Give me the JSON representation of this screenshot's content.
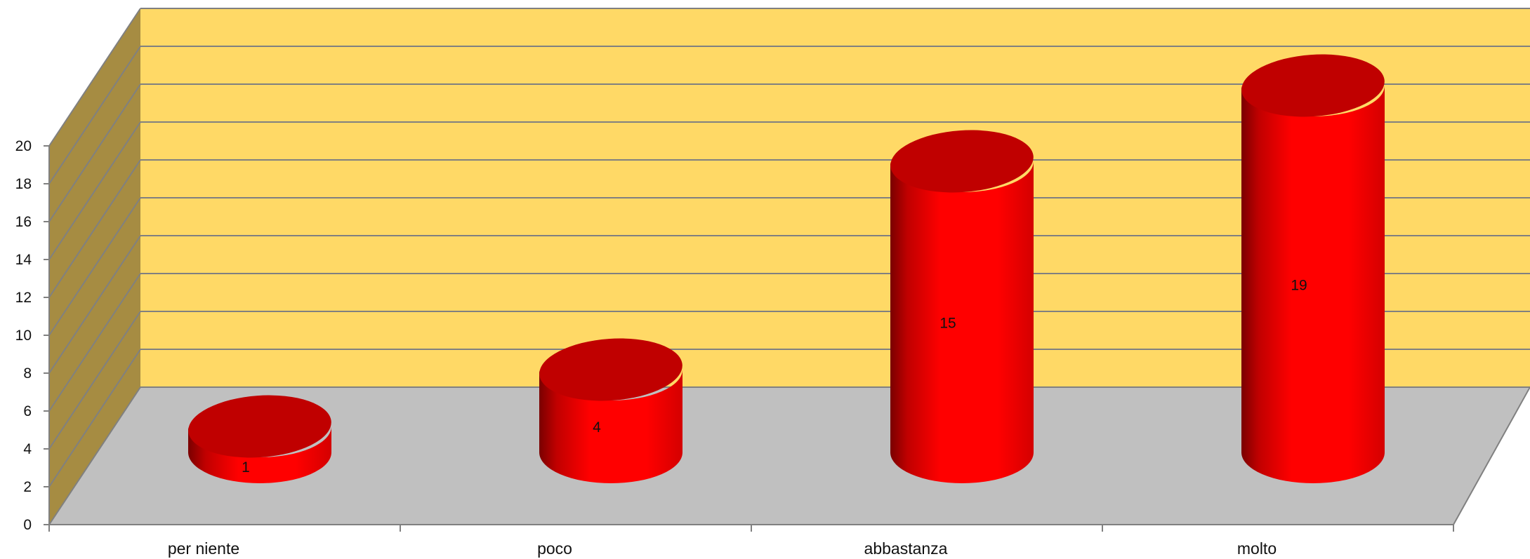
{
  "chart_data": {
    "type": "bar",
    "style": "3d-cylinder",
    "categories": [
      "per niente",
      "poco",
      "abbastanza",
      "molto"
    ],
    "values": [
      1,
      4,
      15,
      19
    ],
    "y_ticks": [
      "0",
      "2",
      "4",
      "6",
      "8",
      "10",
      "12",
      "14",
      "16",
      "18",
      "20"
    ],
    "data_labels": [
      "1",
      "4",
      "15",
      "19"
    ],
    "ylim": [
      0,
      20
    ],
    "grid": true,
    "legend": "none",
    "colors": {
      "bar": "#ff0000",
      "bar_top": "#c00000",
      "back_wall": "#ffd966",
      "side_wall": "#a68c42",
      "floor": "#c0c0c0",
      "gridline": "#808080"
    }
  }
}
